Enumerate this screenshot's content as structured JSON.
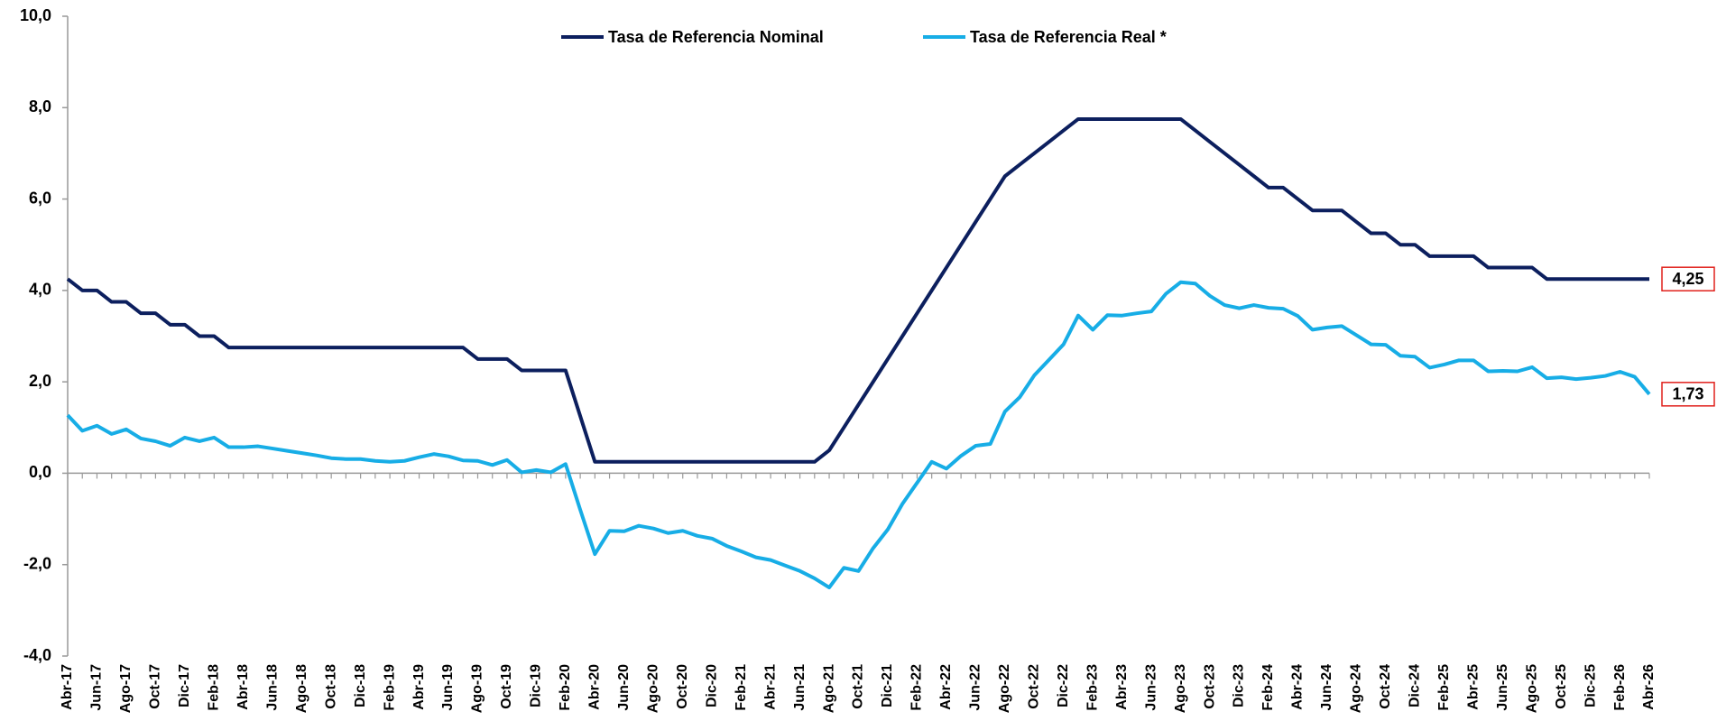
{
  "chart_data": {
    "type": "line",
    "categories": [
      "Abr-17",
      null,
      "Jun-17",
      null,
      "Ago-17",
      null,
      "Oct-17",
      null,
      "Dic-17",
      null,
      "Feb-18",
      null,
      "Abr-18",
      null,
      "Jun-18",
      null,
      "Ago-18",
      null,
      "Oct-18",
      null,
      "Dic-18",
      null,
      "Feb-19",
      null,
      "Abr-19",
      null,
      "Jun-19",
      null,
      "Ago-19",
      null,
      "Oct-19",
      null,
      "Dic-19",
      null,
      "Feb-20",
      null,
      "Abr-20",
      null,
      "Jun-20",
      null,
      "Ago-20",
      null,
      "Oct-20",
      null,
      "Dic-20",
      null,
      "Feb-21",
      null,
      "Abr-21",
      null,
      "Jun-21",
      null,
      "Ago-21",
      null,
      "Oct-21",
      null,
      "Dic-21",
      null,
      "Feb-22",
      null,
      "Abr-22",
      null,
      "Jun-22",
      null,
      "Ago-22",
      null,
      "Oct-22",
      null,
      "Dic-22",
      null,
      "Feb-23",
      null,
      "Abr-23",
      null,
      "Jun-23",
      null,
      "Ago-23",
      null,
      "Oct-23",
      null,
      "Dic-23",
      null,
      "Feb-24",
      null,
      "Abr-24",
      null,
      "Jun-24",
      null,
      "Ago-24",
      null,
      "Oct-24",
      null,
      "Dic-24",
      null,
      "Feb-25",
      null,
      "Abr-25",
      null,
      "Jun-25",
      null,
      "Ago-25",
      null,
      "Oct-25",
      null,
      "Dic-25",
      null,
      "Feb-26",
      null,
      "Abr-26"
    ],
    "series": [
      {
        "name": "Tasa de Referencia Nominal",
        "color": "#0c1f5e",
        "values": [
          4.25,
          4.0,
          4.0,
          3.75,
          3.75,
          3.5,
          3.5,
          3.25,
          3.25,
          3.0,
          3.0,
          2.75,
          2.75,
          2.75,
          2.75,
          2.75,
          2.75,
          2.75,
          2.75,
          2.75,
          2.75,
          2.75,
          2.75,
          2.75,
          2.75,
          2.75,
          2.75,
          2.75,
          2.5,
          2.5,
          2.5,
          2.25,
          2.25,
          2.25,
          2.25,
          1.25,
          0.25,
          0.25,
          0.25,
          0.25,
          0.25,
          0.25,
          0.25,
          0.25,
          0.25,
          0.25,
          0.25,
          0.25,
          0.25,
          0.25,
          0.25,
          0.25,
          0.5,
          1.0,
          1.5,
          2.0,
          2.5,
          3.0,
          3.5,
          4.0,
          4.5,
          5.0,
          5.5,
          6.0,
          6.5,
          6.75,
          7.0,
          7.25,
          7.5,
          7.75,
          7.75,
          7.75,
          7.75,
          7.75,
          7.75,
          7.75,
          7.75,
          7.5,
          7.25,
          7.0,
          6.75,
          6.5,
          6.25,
          6.25,
          6.0,
          5.75,
          5.75,
          5.75,
          5.5,
          5.25,
          5.25,
          5.0,
          5.0,
          4.75,
          4.75,
          4.75,
          4.75,
          4.5,
          4.5,
          4.5,
          4.5,
          4.25,
          4.25,
          4.25,
          4.25,
          4.25,
          4.25,
          4.25,
          4.25
        ],
        "value_labels": [
          null,
          null,
          null,
          null,
          null,
          null,
          null,
          null,
          null,
          null,
          null,
          null,
          null,
          null,
          null,
          null,
          null,
          null,
          null,
          null,
          null,
          null,
          null,
          null,
          null,
          null,
          null,
          null,
          null,
          null,
          null,
          null,
          null,
          null,
          null,
          null,
          null,
          null,
          null,
          null,
          null,
          null,
          null,
          null,
          null,
          null,
          null,
          null,
          null,
          null,
          null,
          null,
          null,
          null,
          null,
          null,
          null,
          null,
          null,
          null,
          null,
          null,
          null,
          null,
          null,
          null,
          null,
          null,
          null,
          null,
          null,
          null,
          null,
          null,
          null,
          null,
          null,
          null,
          null,
          null,
          null,
          null,
          null,
          null,
          null,
          null,
          null,
          null,
          null,
          null,
          null,
          null,
          null,
          null,
          null,
          null,
          null,
          null,
          null,
          null,
          null,
          null,
          null,
          null,
          null,
          null,
          null,
          null,
          "4,25"
        ]
      },
      {
        "name": "Tasa de Referencia Real *",
        "color": "#17ade6",
        "values": [
          1.27,
          0.93,
          1.04,
          0.86,
          0.96,
          0.76,
          0.7,
          0.6,
          0.78,
          0.7,
          0.78,
          0.57,
          0.57,
          0.59,
          0.54,
          0.49,
          0.44,
          0.39,
          0.33,
          0.31,
          0.31,
          0.27,
          0.25,
          0.27,
          0.35,
          0.42,
          0.37,
          0.28,
          0.27,
          0.18,
          0.29,
          0.02,
          0.07,
          0.02,
          0.2,
          -0.8,
          -1.77,
          -1.26,
          -1.27,
          -1.15,
          -1.21,
          -1.31,
          -1.26,
          -1.37,
          -1.43,
          -1.59,
          -1.71,
          -1.84,
          -1.9,
          -2.02,
          -2.14,
          -2.3,
          -2.5,
          -2.07,
          -2.14,
          -1.64,
          -1.23,
          -0.67,
          -0.21,
          0.25,
          0.1,
          0.38,
          0.6,
          0.64,
          1.35,
          1.66,
          2.14,
          2.48,
          2.82,
          3.45,
          3.14,
          3.46,
          3.45,
          3.5,
          3.54,
          3.93,
          4.18,
          4.15,
          3.88,
          3.68,
          3.61,
          3.68,
          3.62,
          3.6,
          3.44,
          3.14,
          3.19,
          3.22,
          3.02,
          2.82,
          2.81,
          2.57,
          2.55,
          2.31,
          2.38,
          2.47,
          2.47,
          2.23,
          2.24,
          2.23,
          2.32,
          2.08,
          2.1,
          2.06,
          2.09,
          2.13,
          2.22,
          2.11,
          1.73
        ],
        "value_labels": [
          null,
          null,
          null,
          null,
          null,
          null,
          null,
          null,
          null,
          null,
          null,
          null,
          null,
          null,
          null,
          null,
          null,
          null,
          null,
          null,
          null,
          null,
          null,
          null,
          null,
          null,
          null,
          null,
          null,
          null,
          null,
          null,
          null,
          null,
          null,
          null,
          null,
          null,
          null,
          null,
          null,
          null,
          null,
          null,
          null,
          null,
          null,
          null,
          null,
          null,
          null,
          null,
          null,
          null,
          null,
          null,
          null,
          null,
          null,
          null,
          null,
          null,
          null,
          null,
          null,
          null,
          null,
          null,
          null,
          null,
          null,
          null,
          null,
          null,
          null,
          null,
          null,
          null,
          null,
          null,
          null,
          null,
          null,
          null,
          null,
          null,
          null,
          null,
          null,
          null,
          null,
          null,
          null,
          null,
          null,
          null,
          null,
          null,
          null,
          null,
          null,
          null,
          null,
          null,
          null,
          null,
          null,
          null,
          "1,73"
        ]
      }
    ],
    "ylim": [
      -4,
      10
    ],
    "yticks": [
      {
        "value": -4,
        "label": "-4,0"
      },
      {
        "value": -2,
        "label": "-2,0"
      },
      {
        "value": 0,
        "label": "0,0"
      },
      {
        "value": 2,
        "label": "2,0"
      },
      {
        "value": 4,
        "label": "4,0"
      },
      {
        "value": 6,
        "label": "6,0"
      },
      {
        "value": 8,
        "label": "8,0"
      },
      {
        "value": 10,
        "label": "10,0"
      }
    ],
    "grid": false,
    "legend": "top"
  }
}
